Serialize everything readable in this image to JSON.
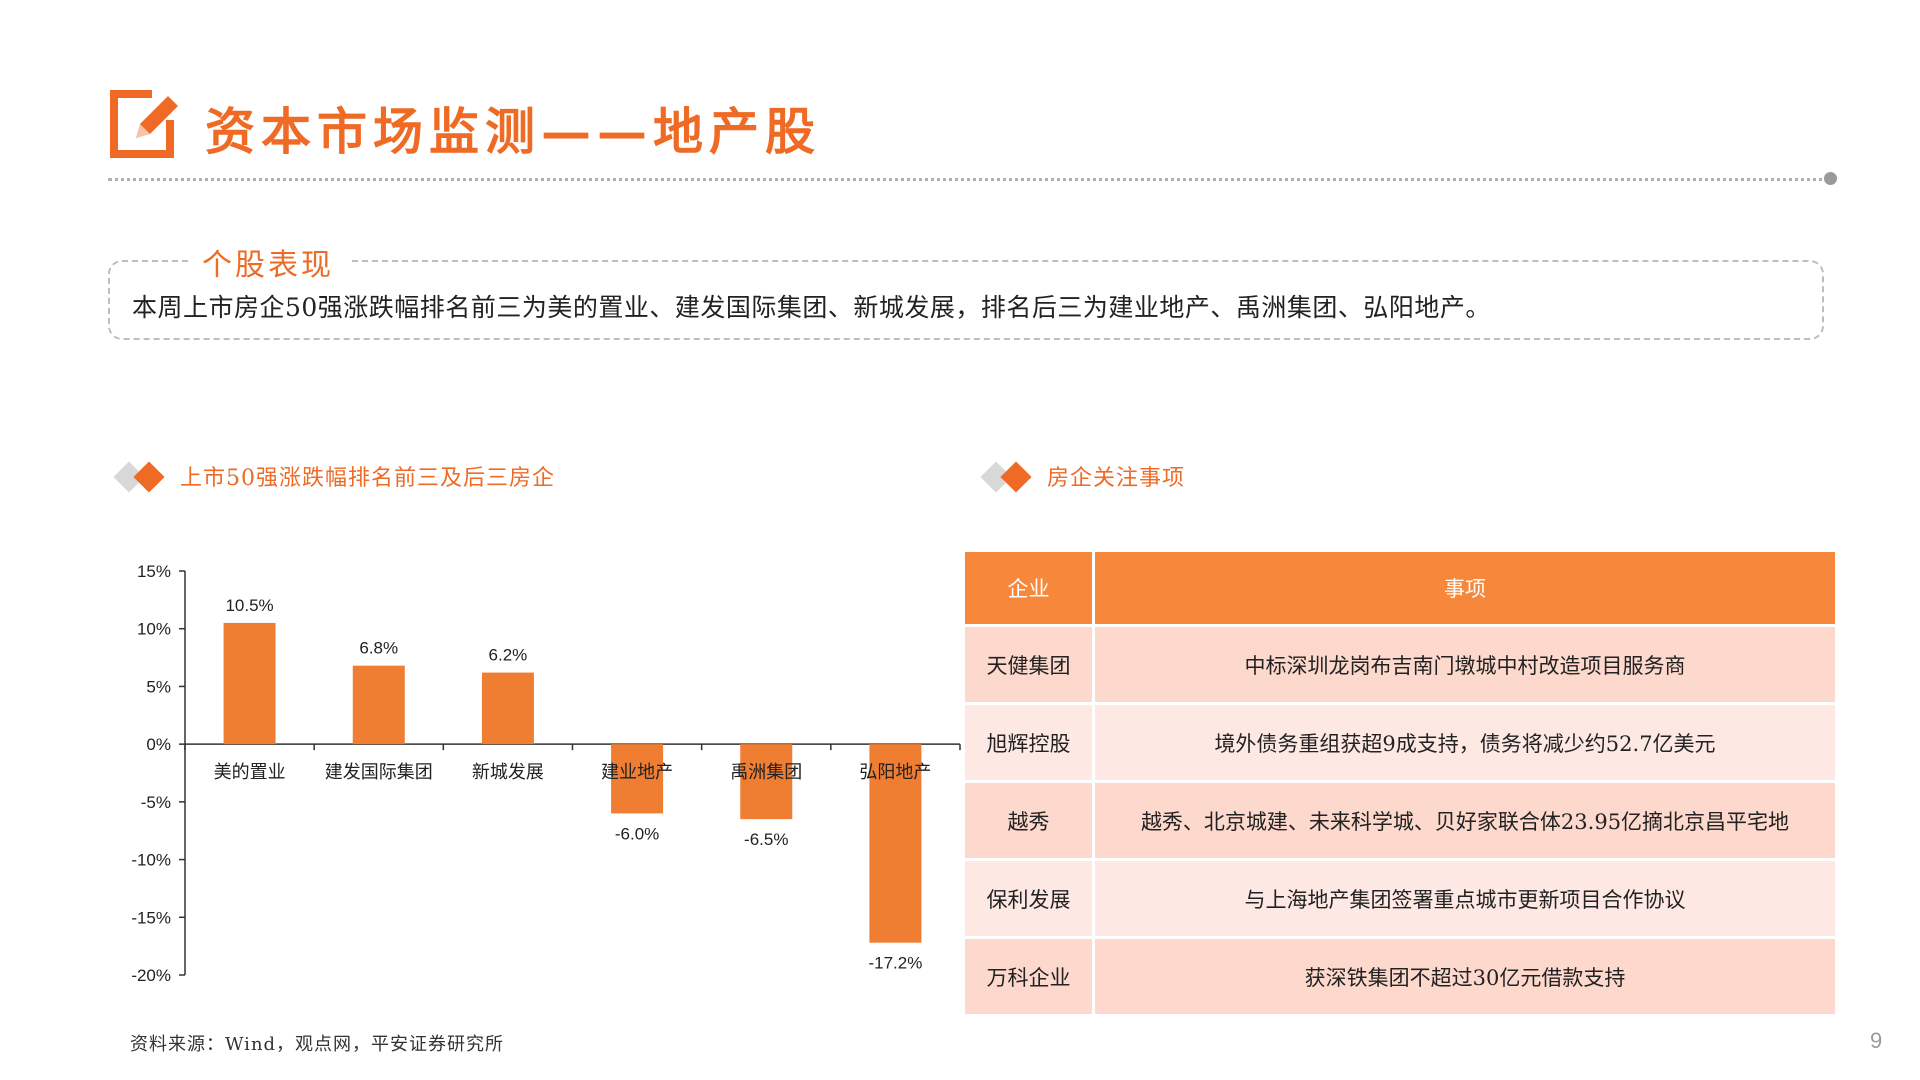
{
  "header": {
    "title": "资本市场监测——地产股",
    "accent_color": "#ef6a24",
    "logo_icon": "pencil-square-icon"
  },
  "summary": {
    "title": "个股表现",
    "text": "本周上市房企50强涨跌幅排名前三为美的置业、建发国际集团、新城发展，排名后三为建业地产、禹洲集团、弘阳地产。"
  },
  "chart_section": {
    "title": "上市50强涨跌幅排名前三及后三房企"
  },
  "table_section": {
    "title": "房企关注事项"
  },
  "chart_data": {
    "type": "bar",
    "title": "",
    "xlabel": "",
    "ylabel": "",
    "categories": [
      "美的置业",
      "建发国际集团",
      "新城发展",
      "建业地产",
      "禹洲集团",
      "弘阳地产"
    ],
    "values": [
      10.5,
      6.8,
      6.2,
      -6.0,
      -6.5,
      -17.2
    ],
    "value_labels": [
      "10.5%",
      "6.8%",
      "6.2%",
      "-6.0%",
      "-6.5%",
      "-17.2%"
    ],
    "ylim": [
      -20,
      15
    ],
    "yticks": [
      15,
      10,
      5,
      0,
      -5,
      -10,
      -15,
      -20
    ],
    "ytick_labels": [
      "15%",
      "10%",
      "5%",
      "0%",
      "-5%",
      "-10%",
      "-15%",
      "-20%"
    ],
    "bar_color": "#ef7d32",
    "grid": false,
    "legend": "none"
  },
  "table": {
    "headers": [
      "企业",
      "事项"
    ],
    "rows": [
      [
        "天健集团",
        "中标深圳龙岗布吉南门墩城中村改造项目服务商"
      ],
      [
        "旭辉控股",
        "境外债务重组获超9成支持，债务将减少约52.7亿美元"
      ],
      [
        "越秀",
        "越秀、北京城建、未来科学城、贝好家联合体23.95亿摘北京昌平宅地"
      ],
      [
        "保利发展",
        "与上海地产集团签署重点城市更新项目合作协议"
      ],
      [
        "万科企业",
        "获深铁集团不超过30亿元借款支持"
      ]
    ]
  },
  "footer": {
    "source": "资料来源：Wind，观点网，平安证券研究所",
    "page_number": "9"
  }
}
